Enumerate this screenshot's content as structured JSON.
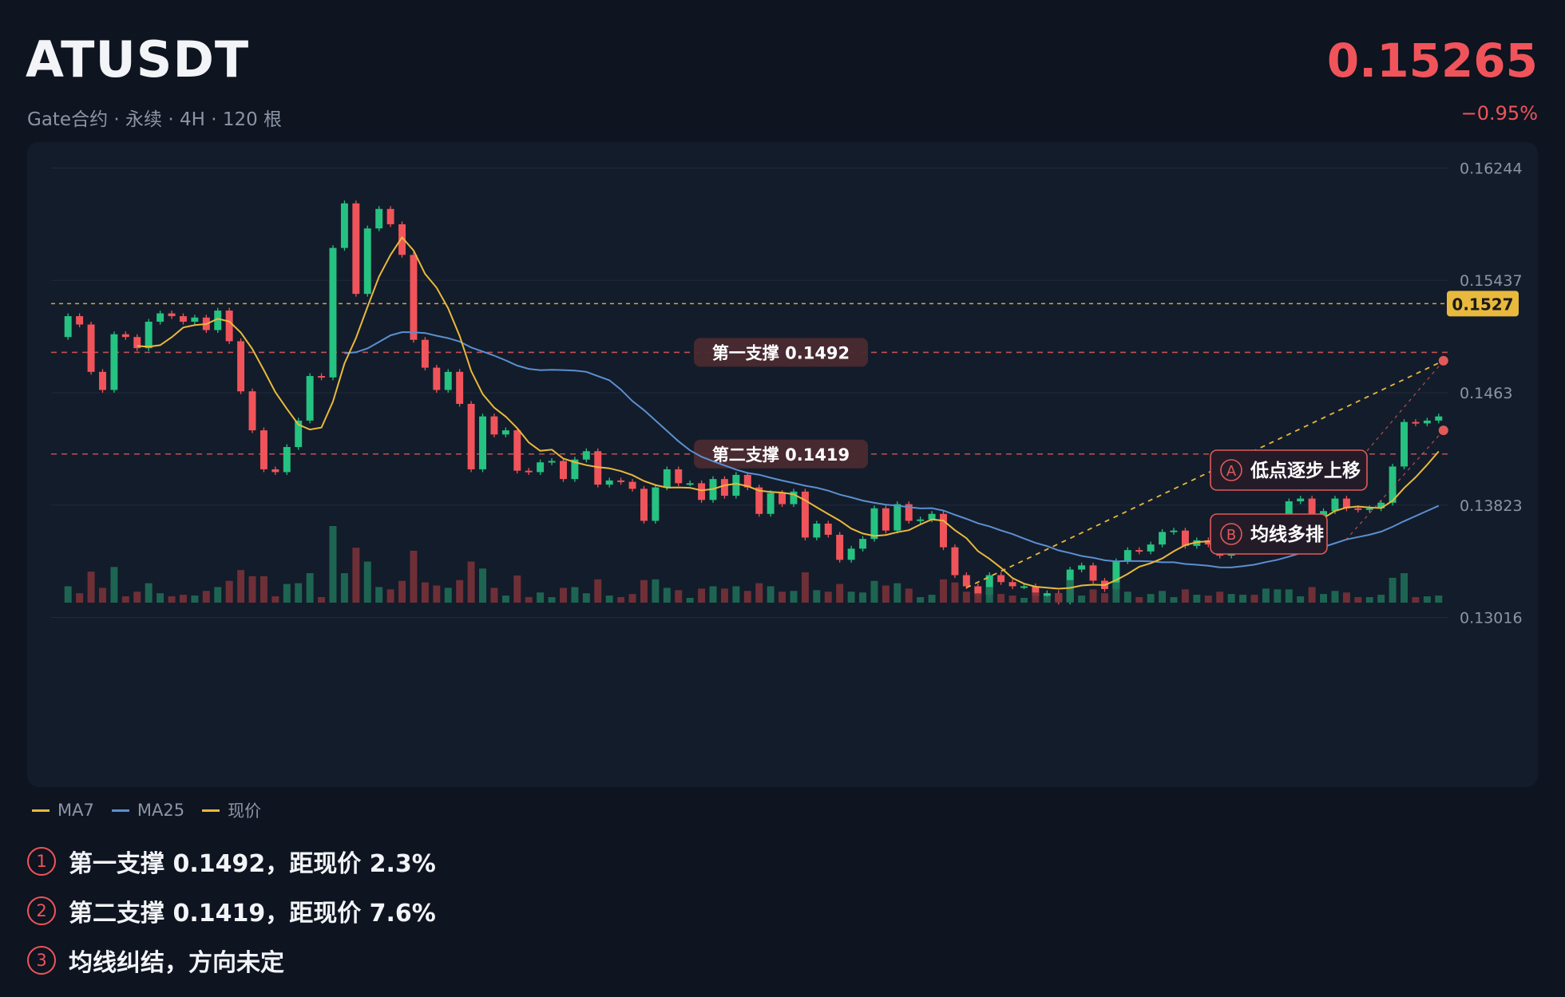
{
  "header": {
    "symbol": "ATUSDT",
    "subtitle": "Gate合约 · 永续 · 4H · 120 根",
    "last_price": "0.15265",
    "change_pct": "−0.95%"
  },
  "colors": {
    "up": "#26c281",
    "down": "#f0545a",
    "ma7": "#e8b93c",
    "ma25": "#5b8fd1",
    "current_price": "#e8b93c",
    "support": "#e05a5a",
    "background": "#0e1420",
    "panel": "#131c2a"
  },
  "legend": [
    {
      "label": "MA7",
      "color": "#e8b93c"
    },
    {
      "label": "MA25",
      "color": "#5b8fd1"
    },
    {
      "label": "现价",
      "color": "#e8b93c"
    }
  ],
  "notes": [
    {
      "num": "1",
      "text": "第一支撑 0.1492，距现价 2.3%"
    },
    {
      "num": "2",
      "text": "第二支撑 0.1419，距现价 7.6%"
    },
    {
      "num": "3",
      "text": "均线纠结，方向未定"
    }
  ],
  "chart_data": {
    "type": "candlestick",
    "timeframe": "4H",
    "bar_count": 120,
    "y_ticks": [
      0.16244,
      0.15437,
      0.1463,
      0.13823,
      0.13016
    ],
    "y_tick_labels": [
      "0.16244",
      "0.15437",
      "0.1463",
      "0.13823",
      "0.13016"
    ],
    "ylim": [
      0.12956,
      0.16304
    ],
    "current_price": {
      "value": 0.1527,
      "label": "0.1527"
    },
    "support_lines": [
      {
        "value": 0.1492,
        "label": "第一支撑 0.1492"
      },
      {
        "value": 0.1419,
        "label": "第二支撑 0.1419"
      }
    ],
    "annotations": [
      {
        "letter": "A",
        "text": "低点逐步上移"
      },
      {
        "letter": "B",
        "text": "均线多排"
      }
    ],
    "candles_close": [
      0.1518,
      0.1512,
      0.1478,
      0.1465,
      0.1505,
      0.1503,
      0.1495,
      0.1514,
      0.152,
      0.1518,
      0.1514,
      0.1517,
      0.1508,
      0.1522,
      0.15,
      0.1464,
      0.1436,
      0.1408,
      0.1406,
      0.1424,
      0.1443,
      0.1475,
      0.1474,
      0.1567,
      0.1599,
      0.1534,
      0.1581,
      0.1595,
      0.1584,
      0.1562,
      0.1501,
      0.1481,
      0.1465,
      0.1478,
      0.1455,
      0.1408,
      0.1446,
      0.1433,
      0.1436,
      0.1407,
      0.1406,
      0.1413,
      0.1414,
      0.1401,
      0.1415,
      0.1421,
      0.1397,
      0.14,
      0.1399,
      0.1394,
      0.1371,
      0.1395,
      0.1408,
      0.1398,
      0.1398,
      0.1386,
      0.1401,
      0.1389,
      0.1404,
      0.1395,
      0.1376,
      0.1391,
      0.1383,
      0.1392,
      0.1359,
      0.1369,
      0.1361,
      0.1343,
      0.1351,
      0.1358,
      0.138,
      0.1364,
      0.1383,
      0.1371,
      0.1372,
      0.1376,
      0.1352,
      0.1332,
      0.1324,
      0.1318,
      0.1332,
      0.1327,
      0.1324,
      0.1324,
      0.1317,
      0.1319,
      0.1313,
      0.1336,
      0.1339,
      0.1328,
      0.1322,
      0.1342,
      0.135,
      0.1349,
      0.1354,
      0.1363,
      0.1364,
      0.1353,
      0.1357,
      0.1354,
      0.1346,
      0.1351,
      0.1355,
      0.1351,
      0.1363,
      0.1374,
      0.1385,
      0.1387,
      0.1373,
      0.1378,
      0.1387,
      0.138,
      0.1379,
      0.138,
      0.1384,
      0.141,
      0.1442,
      0.1441,
      0.1443,
      0.1446
    ]
  }
}
